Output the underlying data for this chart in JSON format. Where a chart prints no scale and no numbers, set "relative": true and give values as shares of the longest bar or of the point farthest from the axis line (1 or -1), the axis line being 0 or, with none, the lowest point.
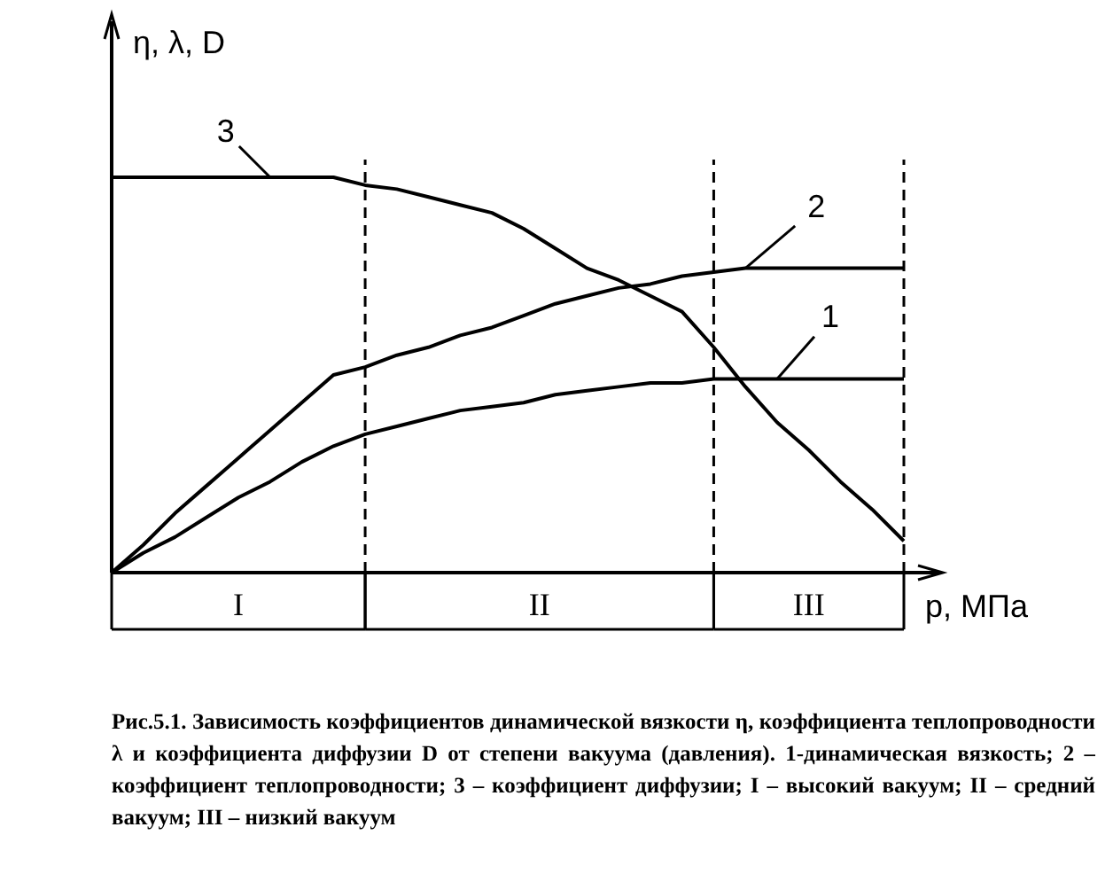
{
  "chart_data": {
    "type": "line",
    "relative": true,
    "xlabel": "p, МПа",
    "ylabel": "η, λ, D",
    "line_style": "solid",
    "grid": "x",
    "categories": [
      null,
      null,
      null,
      null,
      null,
      null,
      null,
      null,
      null,
      null,
      null,
      null,
      null,
      null,
      null,
      null,
      null,
      null,
      null,
      null,
      null,
      null,
      null,
      null,
      null,
      null
    ],
    "series": [
      {
        "name": "1",
        "color": "#000000",
        "values": [
          0,
          0.05,
          0.09,
          0.14,
          0.19,
          0.23,
          0.28,
          0.32,
          0.35,
          0.37,
          0.39,
          0.41,
          0.42,
          0.43,
          0.45,
          0.46,
          0.47,
          0.48,
          0.48,
          0.49,
          0.49,
          0.49,
          0.49,
          0.49,
          0.49,
          0.49
        ]
      },
      {
        "name": "2",
        "color": "#000000",
        "values": [
          0,
          0.07,
          0.15,
          0.22,
          0.29,
          0.36,
          0.43,
          0.5,
          0.52,
          0.55,
          0.57,
          0.6,
          0.62,
          0.65,
          0.68,
          0.7,
          0.72,
          0.73,
          0.75,
          0.76,
          0.77,
          0.77,
          0.77,
          0.77,
          0.77,
          0.77
        ]
      },
      {
        "name": "3",
        "color": "#000000",
        "values": [
          1,
          1,
          1,
          1,
          1,
          1,
          1,
          1,
          0.98,
          0.97,
          0.95,
          0.93,
          0.91,
          0.87,
          0.82,
          0.77,
          0.74,
          0.7,
          0.66,
          0.57,
          0.47,
          0.38,
          0.31,
          0.23,
          0.16,
          0.08
        ]
      }
    ],
    "annotations": [
      "I",
      "II",
      "III",
      "Рис.5.1. Зависимость коэффициентов динамической вязкости η, коэффициента теплопроводности λ и коэффициента диффузии D от степени вакуума (давления). 1-динамическая вязкость; 2 – коэффициент теплопроводности; 3 – коэффициент диффузии; I – высокий вакуум; II – средний вакуум; III – низкий вакуум"
    ]
  }
}
